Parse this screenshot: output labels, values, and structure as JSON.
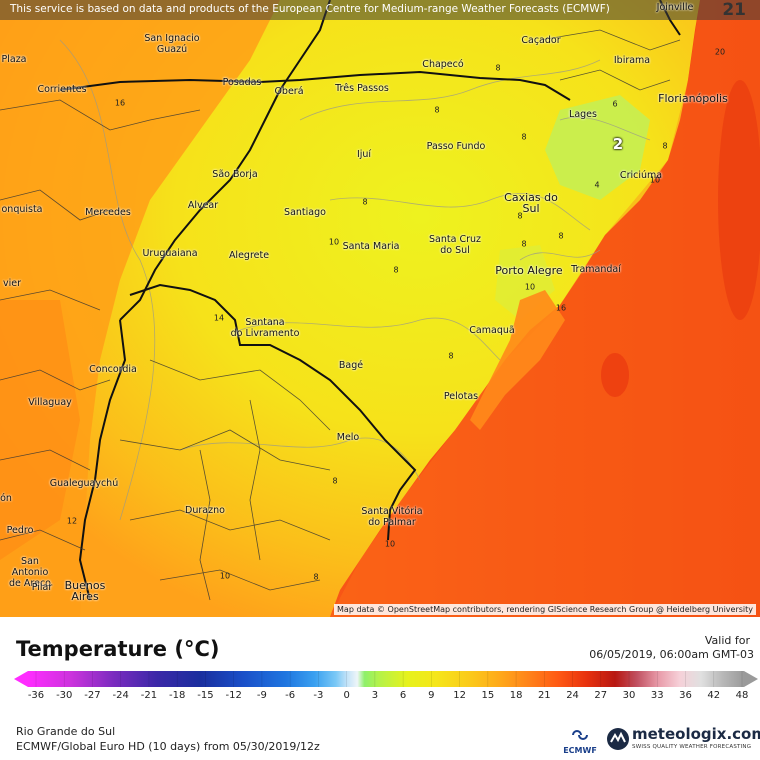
{
  "banner": "This service is based on data and products of the European Centre for Medium-range Weather Forecasts (ECMWF)",
  "step_number": "21",
  "map_credit": "Map data © OpenStreetMap contributors, rendering GIScience Research Group @ Heidelberg University",
  "cities": [
    {
      "name": "Joinville"
    },
    {
      "name": "San Ignacio\nGuazú"
    },
    {
      "name": "Caçador"
    },
    {
      "name": "Chapecó"
    },
    {
      "name": "Ibirama"
    },
    {
      "name": "Posadas"
    },
    {
      "name": "Oberá"
    },
    {
      "name": "Três Passos"
    },
    {
      "name": "Corrientes"
    },
    {
      "name": "Florianópolis"
    },
    {
      "name": "Lages"
    },
    {
      "name": "Passo Fundo"
    },
    {
      "name": "Ijuí"
    },
    {
      "name": "São Borja"
    },
    {
      "name": "Criciúma"
    },
    {
      "name": "Caxias do\nSul"
    },
    {
      "name": "Alvear"
    },
    {
      "name": "Santiago"
    },
    {
      "name": "Mercedes"
    },
    {
      "name": "Santa Maria"
    },
    {
      "name": "Santa Cruz\ndo Sul"
    },
    {
      "name": "Uruguaiana"
    },
    {
      "name": "Alegrete"
    },
    {
      "name": "Porto Alegre"
    },
    {
      "name": "Tramandaí"
    },
    {
      "name": "Santana\ndo Livramento"
    },
    {
      "name": "Camaquã"
    },
    {
      "name": "Concordia"
    },
    {
      "name": "Bagé"
    },
    {
      "name": "Villaguay"
    },
    {
      "name": "Pelotas"
    },
    {
      "name": "Melo"
    },
    {
      "name": "Gualeguaychú"
    },
    {
      "name": "Santa Vitória\ndo Palmar"
    },
    {
      "name": "Durazno"
    },
    {
      "name": "Buenos\nAires"
    },
    {
      "name": "San\nAntonio\nde Areco"
    },
    {
      "name": "Pilar"
    },
    {
      "name": "Pedro"
    },
    {
      "name": "Plaza"
    },
    {
      "name": "onquista"
    },
    {
      "name": "vier"
    },
    {
      "name": "ón"
    }
  ],
  "isolines": [
    {
      "value": "20"
    },
    {
      "value": "16"
    },
    {
      "value": "8"
    },
    {
      "value": "8"
    },
    {
      "value": "6"
    },
    {
      "value": "8"
    },
    {
      "value": "8"
    },
    {
      "value": "2",
      "emphasis": true
    },
    {
      "value": "4"
    },
    {
      "value": "10"
    },
    {
      "value": "8"
    },
    {
      "value": "10"
    },
    {
      "value": "8"
    },
    {
      "value": "8"
    },
    {
      "value": "8"
    },
    {
      "value": "10"
    },
    {
      "value": "16"
    },
    {
      "value": "14"
    },
    {
      "value": "8"
    },
    {
      "value": "12"
    },
    {
      "value": "10"
    },
    {
      "value": "10"
    },
    {
      "value": "8"
    },
    {
      "value": "8"
    },
    {
      "value": "8"
    }
  ],
  "legend": {
    "title": "Temperature (°C)",
    "valid_label": "Valid for",
    "valid_value": "06/05/2019, 06:00am GMT-03",
    "ticks": [
      "-36",
      "-30",
      "-27",
      "-24",
      "-21",
      "-18",
      "-15",
      "-12",
      "-9",
      "-6",
      "-3",
      "0",
      "3",
      "6",
      "9",
      "12",
      "15",
      "18",
      "21",
      "24",
      "27",
      "30",
      "33",
      "36",
      "42",
      "48"
    ],
    "region": "Rio Grande do Sul",
    "model": "ECMWF/Global Euro HD (10 days) from 05/30/2019/12z",
    "ecmwf_logo": "ECMWF",
    "brand": "meteologix.com",
    "brand_tagline": "SWISS QUALITY WEATHER FORECASTING"
  },
  "colors": {
    "sea_warm": "#ff5a1a",
    "land_warm": "#ffa21a",
    "land_mild": "#f2e51a",
    "land_cool": "#c9ef4a"
  }
}
